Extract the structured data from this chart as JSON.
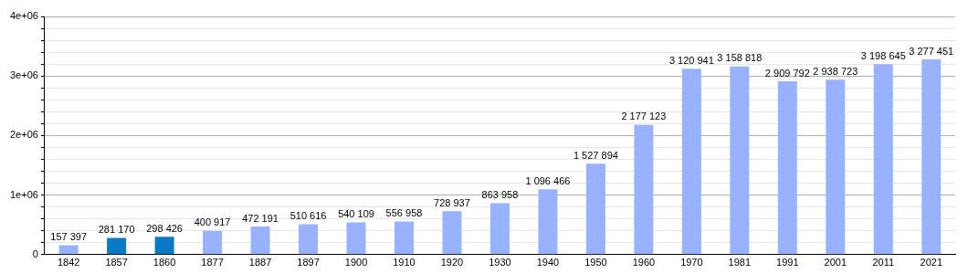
{
  "chart_data": {
    "type": "bar",
    "categories": [
      "1842",
      "1857",
      "1860",
      "1877",
      "1887",
      "1897",
      "1900",
      "1910",
      "1920",
      "1930",
      "1940",
      "1950",
      "1960",
      "1970",
      "1981",
      "1991",
      "2001",
      "2011",
      "2021"
    ],
    "values": [
      157397,
      281170,
      298426,
      400917,
      472191,
      510616,
      540109,
      556958,
      728937,
      863958,
      1096466,
      1527894,
      2177123,
      3120941,
      3158818,
      2909792,
      2938723,
      3198645,
      3277451
    ],
    "colors": [
      "#99b2ff",
      "#0b7ac4",
      "#0b7ac4",
      "#99b2ff",
      "#99b2ff",
      "#99b2ff",
      "#99b2ff",
      "#99b2ff",
      "#99b2ff",
      "#99b2ff",
      "#99b2ff",
      "#99b2ff",
      "#99b2ff",
      "#99b2ff",
      "#99b2ff",
      "#99b2ff",
      "#99b2ff",
      "#99b2ff",
      "#99b2ff"
    ],
    "value_labels": [
      "157 397",
      "281 170",
      "298 426",
      "400 917",
      "472 191",
      "510 616",
      "540 109",
      "556 958",
      "728 937",
      "863 958",
      "1 096 466",
      "1 527 894",
      "2 177 123",
      "3 120 941",
      "3 158 818",
      "2 909 792",
      "2 938 723",
      "3 198 645",
      "3 277 451"
    ],
    "ylim": [
      0,
      4000000
    ],
    "yticks": [
      0,
      {
        "value": 200000,
        "label": null
      },
      {
        "value": 400000,
        "label": null
      },
      {
        "value": 600000,
        "label": null
      },
      {
        "value": 800000,
        "label": null
      },
      {
        "value": 1000000,
        "label": "1e+06"
      },
      {
        "value": 1200000,
        "label": null
      },
      {
        "value": 1400000,
        "label": null
      },
      {
        "value": 1600000,
        "label": null
      },
      {
        "value": 1800000,
        "label": null
      },
      {
        "value": 2000000,
        "label": "2e+06"
      },
      {
        "value": 2200000,
        "label": null
      },
      {
        "value": 2400000,
        "label": null
      },
      {
        "value": 2600000,
        "label": null
      },
      {
        "value": 2800000,
        "label": null
      },
      {
        "value": 3000000,
        "label": "3e+06"
      },
      {
        "value": 3200000,
        "label": null
      },
      {
        "value": 3400000,
        "label": null
      },
      {
        "value": 3600000,
        "label": null
      },
      {
        "value": 3800000,
        "label": null
      },
      {
        "value": 4000000,
        "label": "4e+06"
      }
    ],
    "grid": "y",
    "legend": false
  }
}
